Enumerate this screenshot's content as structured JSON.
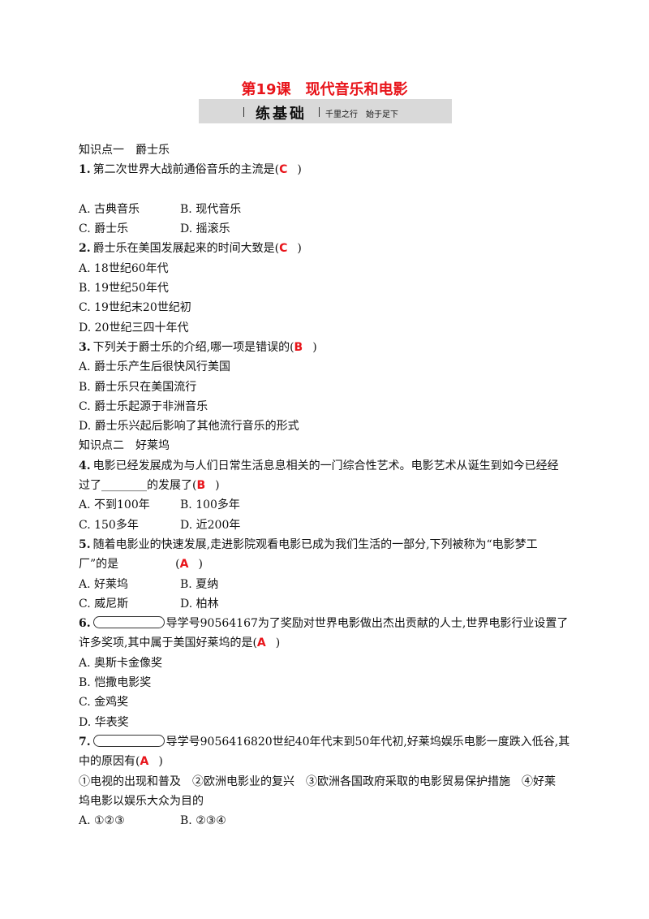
{
  "title": "第19课　现代音乐和电影",
  "banner": {
    "label": "练基础",
    "motto": "千里之行　始于足下"
  },
  "sections": [
    {
      "heading": "知识点一　爵士乐",
      "questions": [
        {
          "number": "1.",
          "stem": [
            "第二次世界大战前通俗音乐的主流是("
          ],
          "answer": "C",
          "close": ")",
          "options": [
            [
              "A. 古典音乐",
              "B. 现代音乐"
            ],
            [
              "C. 爵士乐",
              "D. 摇滚乐"
            ]
          ]
        },
        {
          "number": "2.",
          "stem": [
            "爵士乐在美国发展起来的时间大致是("
          ],
          "answer": "C",
          "close": ")",
          "options": [
            [
              "A. 18世纪60年代"
            ],
            [
              "B. 19世纪50年代"
            ],
            [
              "C. 19世纪末20世纪初"
            ],
            [
              "D. 20世纪三四十年代"
            ]
          ]
        },
        {
          "number": "3.",
          "stem": [
            "下列关于爵士乐的介绍,哪一项是错误的("
          ],
          "answer": "B",
          "close": ")",
          "options": [
            [
              "A. 爵士乐产生后很快风行美国"
            ],
            [
              "B. 爵士乐只在美国流行"
            ],
            [
              "C. 爵士乐起源于非洲音乐"
            ],
            [
              "D. 爵士乐兴起后影响了其他流行音乐的形式"
            ]
          ]
        }
      ]
    },
    {
      "heading": "知识点二　好莱坞",
      "questions": [
        {
          "number": "4.",
          "stem": [
            "电影已经发展成为与人们日常生活息息相关的一门综合性艺术。电影艺术从诞生到如今已经经",
            "过了________的发展了("
          ],
          "answer": "B",
          "close": ")",
          "options": [
            [
              "A. 不到100年",
              "B. 100多年"
            ],
            [
              "C. 150多年",
              "D. 近200年"
            ]
          ]
        },
        {
          "number": "5.",
          "stem": [
            "随着电影业的快速发展,走进影院观看电影已成为我们生活的一部分,下列被称为“电影梦工",
            "厂”的是　　　　　("
          ],
          "answer": "A",
          "close": ")",
          "options": [
            [
              "A. 好莱坞",
              "B. 夏纳"
            ],
            [
              "C. 威尼斯",
              "D. 柏林"
            ]
          ]
        },
        {
          "number": "6.",
          "stem": [
            "导学号90564167为了奖励对世界电影做出杰出贡献的人士,世界电影行业设置了",
            "许多奖项,其中属于美国好莱坞的是("
          ],
          "answer": "A",
          "close": ")",
          "options": [
            [
              "A. 奥斯卡金像奖"
            ],
            [
              "B. 恺撒电影奖"
            ],
            [
              "C. 金鸡奖"
            ],
            [
              "D. 华表奖"
            ]
          ]
        },
        {
          "number": "7.",
          "stem": [
            "导学号9056416820世纪40年代末到50年代初,好莱坞娱乐电影一度跌入低谷,其",
            "中的原因有("
          ],
          "answer": "A",
          "close": ")",
          "statements": [
            "①电视的出现和普及　②欧洲电影业的复兴　③欧洲各国政府采取的电影贸易保护措施　④好莱",
            "坞电影以娱乐大众为目的"
          ],
          "options": [
            [
              "A. ①②③",
              "B. ②③④"
            ]
          ]
        }
      ]
    }
  ]
}
